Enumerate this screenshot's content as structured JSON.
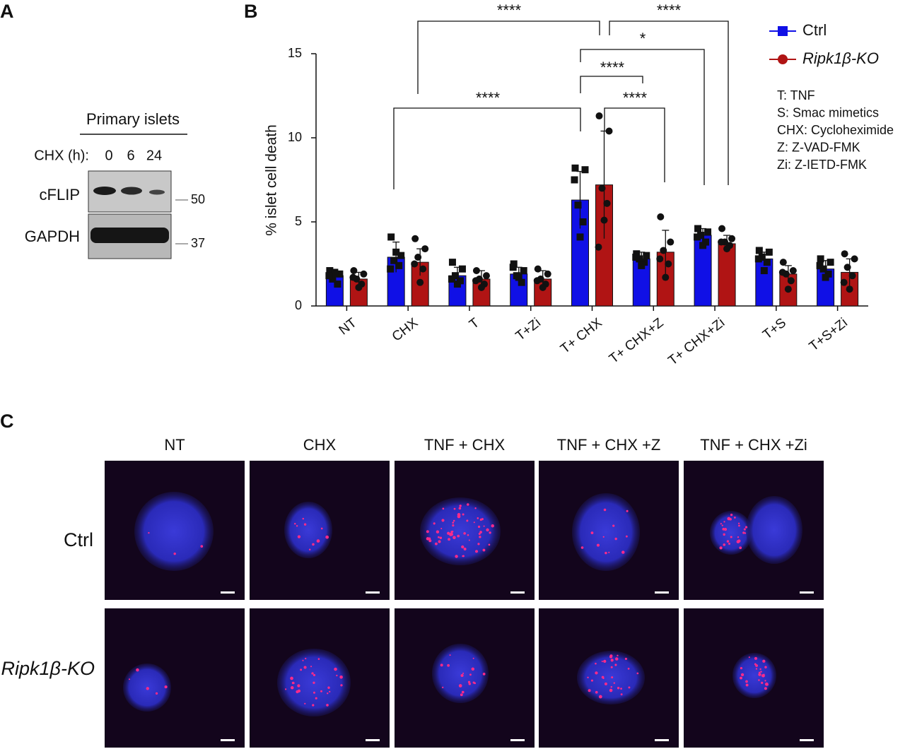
{
  "panel_a": {
    "label": "A",
    "title": "Primary islets",
    "time_label": "CHX (h):",
    "times": [
      "0",
      "6",
      "24"
    ],
    "rows": [
      "cFLIP",
      "GAPDH"
    ],
    "markers": [
      "50",
      "37"
    ]
  },
  "chart_data": {
    "type": "bar",
    "label": "B",
    "y_label": "% islet cell death",
    "categories": [
      "NT",
      "CHX",
      "T",
      "T+Zi",
      "T+ CHX",
      "T+ CHX+Z",
      "T+ CHX+Zi",
      "T+S",
      "T+S+Zi"
    ],
    "ylim": [
      0,
      15
    ],
    "yticks": [
      0,
      5,
      10,
      15
    ],
    "grid": false,
    "series": [
      {
        "name": "Ctrl",
        "color": "#1010e6",
        "marker": "square",
        "values": [
          1.8,
          2.9,
          1.8,
          1.9,
          6.3,
          2.8,
          4.2,
          2.8,
          2.2
        ],
        "errors": [
          0.3,
          0.9,
          0.5,
          0.4,
          1.7,
          0.4,
          0.4,
          0.4,
          0.5
        ],
        "points": [
          [
            2.1,
            1.9,
            1.6,
            1.3,
            2.0,
            1.8
          ],
          [
            4.1,
            3.0,
            2.7,
            2.4,
            3.2,
            2.2
          ],
          [
            2.6,
            2.2,
            1.8,
            1.5,
            1.3,
            1.6
          ],
          [
            2.5,
            2.1,
            1.8,
            1.4,
            1.7,
            2.3
          ],
          [
            8.2,
            8.1,
            6.0,
            5.0,
            4.1,
            7.5
          ],
          [
            3.1,
            3.0,
            2.8,
            2.6,
            2.4,
            2.9
          ],
          [
            4.6,
            4.4,
            4.2,
            3.8,
            3.6,
            4.1
          ],
          [
            3.3,
            3.2,
            2.9,
            2.6,
            2.1,
            2.8
          ],
          [
            2.8,
            2.6,
            2.2,
            1.9,
            1.7,
            2.4
          ]
        ]
      },
      {
        "name": "Ripk1β-KO",
        "color": "#b01414",
        "marker": "circle",
        "values": [
          1.6,
          2.6,
          1.6,
          1.6,
          7.2,
          3.2,
          3.7,
          1.9,
          2.0
        ],
        "errors": [
          0.4,
          0.8,
          0.5,
          0.5,
          3.2,
          1.3,
          0.5,
          0.5,
          0.8
        ],
        "points": [
          [
            2.1,
            1.9,
            1.6,
            1.3,
            1.1,
            1.7
          ],
          [
            4.0,
            3.4,
            2.9,
            2.2,
            1.4,
            2.5
          ],
          [
            2.1,
            1.8,
            1.6,
            1.3,
            1.1,
            1.5
          ],
          [
            2.2,
            1.9,
            1.6,
            1.3,
            1.1,
            1.5
          ],
          [
            11.3,
            10.4,
            7.0,
            6.1,
            5.1,
            3.5
          ],
          [
            5.3,
            3.8,
            3.3,
            2.5,
            1.7,
            2.8
          ],
          [
            4.6,
            4.0,
            3.8,
            3.6,
            3.4,
            3.8
          ],
          [
            2.6,
            2.1,
            1.9,
            1.5,
            1.0,
            2.0
          ],
          [
            3.1,
            2.8,
            2.3,
            1.8,
            1.0,
            1.4
          ]
        ]
      }
    ],
    "significance": [
      "****",
      "****",
      "*",
      "****",
      "****",
      "****"
    ],
    "notes": [
      "T:  TNF",
      "S: Smac mimetics",
      "CHX: Cycloheximide",
      "Z:  Z-VAD-FMK",
      "Zi: Z-IETD-FMK"
    ]
  },
  "panel_c": {
    "label": "C",
    "columns": [
      "NT",
      "CHX",
      "TNF + CHX",
      "TNF + CHX +Z",
      "TNF + CHX +Zi"
    ],
    "rows": [
      "Ctrl",
      "Ripk1β-KO"
    ]
  }
}
